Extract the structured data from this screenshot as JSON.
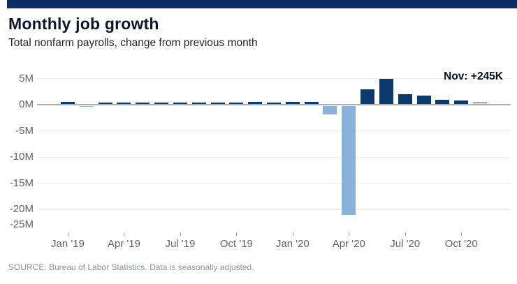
{
  "header": {
    "title": "Monthly job growth",
    "subtitle": "Total nonfarm payrolls, change from previous month"
  },
  "annotation": "Nov: +245K",
  "source": "SOURCE: Bureau of Labor Statistics. Data is seasonally adjusted.",
  "colors": {
    "brand_strip": "#0c2d63",
    "positive_bar": "#0d3a6d",
    "negative_bar": "#88b2d8",
    "zero_line": "#b0b0b0",
    "gridline": "#e9e9e9",
    "axis_text": "#5f6368",
    "tick": "#9a9a9a",
    "title_text": "#0d1526",
    "subtitle_text": "#1f2328",
    "annotation_text": "#05101f",
    "source_text": "#8c929c"
  },
  "chart_data": {
    "type": "bar",
    "title": "Monthly job growth",
    "subtitle": "Total nonfarm payrolls, change from previous month",
    "unit": "millions of jobs, month-over-month change",
    "categories": [
      "Jan '19",
      "Feb '19",
      "Mar '19",
      "Apr '19",
      "May '19",
      "Jun '19",
      "Jul '19",
      "Aug '19",
      "Sep '19",
      "Oct '19",
      "Nov '19",
      "Dec '19",
      "Jan '20",
      "Feb '20",
      "Mar '20",
      "Apr '20",
      "May '20",
      "Jun '20",
      "Jul '20",
      "Aug '20",
      "Sep '20",
      "Oct '20",
      "Nov '20"
    ],
    "values": [
      0.3,
      -0.02,
      0.2,
      0.2,
      0.1,
      0.2,
      0.2,
      0.2,
      0.2,
      0.2,
      0.3,
      0.2,
      0.3,
      0.3,
      -1.7,
      -20.8,
      2.7,
      4.8,
      1.8,
      1.5,
      0.7,
      0.6,
      0.245
    ],
    "last_point_label": "Nov: +245K",
    "ylim": [
      -25,
      5
    ],
    "y_tick_values": [
      5,
      0,
      -5,
      -10,
      -15,
      -20,
      -25
    ],
    "y_tick_labels": [
      "5M",
      "0M",
      "-5M",
      "-10M",
      "-15M",
      "-20M",
      "-25M"
    ],
    "x_tick_indices": [
      0,
      3,
      6,
      9,
      12,
      15,
      18,
      21
    ],
    "x_tick_labels": [
      "Jan '19",
      "Apr '19",
      "Jul '19",
      "Oct '19",
      "Jan '20",
      "Apr '20",
      "Jul '20",
      "Oct '20"
    ],
    "grid": true,
    "legend": "none"
  }
}
